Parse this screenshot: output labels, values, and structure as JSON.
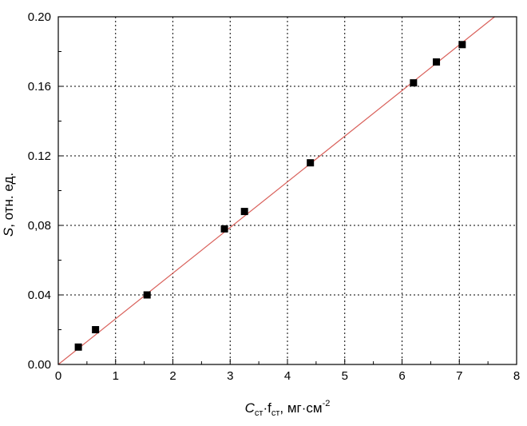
{
  "chart_data": {
    "type": "scatter",
    "title": "",
    "xlabel": {
      "symbol": "C",
      "sub1": "ст",
      "mid": "·f",
      "sub2": "ст",
      "unit": ", мг·см",
      "sup": "-2"
    },
    "ylabel": {
      "symbol": "S",
      "rest": ", отн. ед."
    },
    "xlim": [
      0,
      8
    ],
    "ylim": [
      0,
      0.2
    ],
    "x_ticks": [
      "0",
      "1",
      "2",
      "3",
      "4",
      "5",
      "6",
      "7",
      "8"
    ],
    "y_ticks": [
      "0.00",
      "0.04",
      "0,08",
      "0.12",
      "0.16",
      "0.20"
    ],
    "grid": true,
    "series": [
      {
        "points": [
          {
            "x": 0.35,
            "y": 0.01
          },
          {
            "x": 0.65,
            "y": 0.02
          },
          {
            "x": 1.55,
            "y": 0.04
          },
          {
            "x": 2.9,
            "y": 0.078
          },
          {
            "x": 3.25,
            "y": 0.088
          },
          {
            "x": 4.4,
            "y": 0.116
          },
          {
            "x": 6.2,
            "y": 0.162
          },
          {
            "x": 6.6,
            "y": 0.174
          },
          {
            "x": 7.05,
            "y": 0.184
          }
        ],
        "color": "#000000",
        "marker": "square"
      }
    ],
    "fit_line": {
      "slope": 0.02626,
      "intercept": 0.0,
      "x_range": [
        0,
        7.62
      ],
      "color": "#d9605a"
    }
  }
}
